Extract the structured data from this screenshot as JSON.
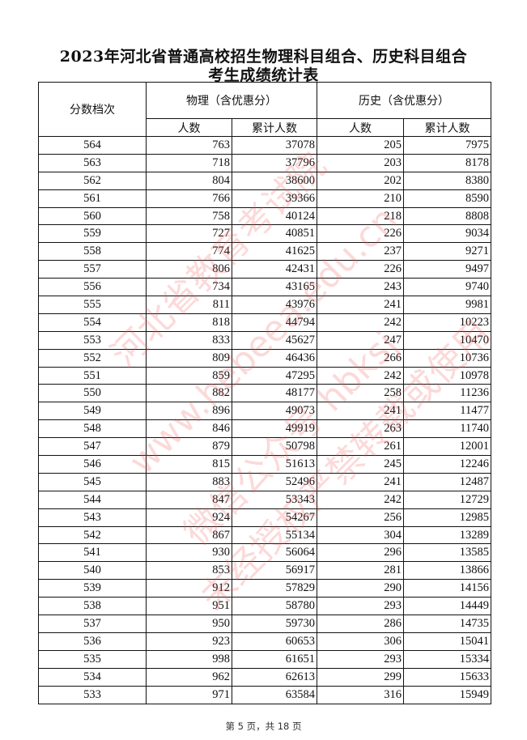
{
  "title_line1": "2023年河北省普通高校招生物理科目组合、历史科目组合",
  "title_line2": "考生成绩统计表",
  "headers": {
    "score": "分数档次",
    "physics": "物理（含优惠分）",
    "history": "历史（含优惠分）",
    "count": "人数",
    "cumulative": "累计人数"
  },
  "rows": [
    [
      "564",
      "763",
      "37078",
      "205",
      "7975"
    ],
    [
      "563",
      "718",
      "37796",
      "203",
      "8178"
    ],
    [
      "562",
      "804",
      "38600",
      "202",
      "8380"
    ],
    [
      "561",
      "766",
      "39366",
      "210",
      "8590"
    ],
    [
      "560",
      "758",
      "40124",
      "218",
      "8808"
    ],
    [
      "559",
      "727",
      "40851",
      "226",
      "9034"
    ],
    [
      "558",
      "774",
      "41625",
      "237",
      "9271"
    ],
    [
      "557",
      "806",
      "42431",
      "226",
      "9497"
    ],
    [
      "556",
      "734",
      "43165",
      "243",
      "9740"
    ],
    [
      "555",
      "811",
      "43976",
      "241",
      "9981"
    ],
    [
      "554",
      "818",
      "44794",
      "242",
      "10223"
    ],
    [
      "553",
      "833",
      "45627",
      "247",
      "10470"
    ],
    [
      "552",
      "809",
      "46436",
      "266",
      "10736"
    ],
    [
      "551",
      "859",
      "47295",
      "242",
      "10978"
    ],
    [
      "550",
      "882",
      "48177",
      "258",
      "11236"
    ],
    [
      "549",
      "896",
      "49073",
      "241",
      "11477"
    ],
    [
      "548",
      "846",
      "49919",
      "263",
      "11740"
    ],
    [
      "547",
      "879",
      "50798",
      "261",
      "12001"
    ],
    [
      "546",
      "815",
      "51613",
      "245",
      "12246"
    ],
    [
      "545",
      "883",
      "52496",
      "241",
      "12487"
    ],
    [
      "544",
      "847",
      "53343",
      "242",
      "12729"
    ],
    [
      "543",
      "924",
      "54267",
      "256",
      "12985"
    ],
    [
      "542",
      "867",
      "55134",
      "304",
      "13289"
    ],
    [
      "541",
      "930",
      "56064",
      "296",
      "13585"
    ],
    [
      "540",
      "853",
      "56917",
      "281",
      "13866"
    ],
    [
      "539",
      "912",
      "57829",
      "290",
      "14156"
    ],
    [
      "538",
      "951",
      "58780",
      "293",
      "14449"
    ],
    [
      "537",
      "950",
      "59730",
      "286",
      "14735"
    ],
    [
      "536",
      "923",
      "60653",
      "306",
      "15041"
    ],
    [
      "535",
      "998",
      "61651",
      "293",
      "15334"
    ],
    [
      "534",
      "962",
      "62613",
      "299",
      "15633"
    ],
    [
      "533",
      "971",
      "63584",
      "316",
      "15949"
    ]
  ],
  "footer": "第 5 页，共 18 页",
  "watermark": [
    "河北省教育考试院",
    "www.hebeea.edu.cn",
    "微信公众号 hbksj",
    "未经授权严禁转载或使用"
  ],
  "watermark_color": "#f05050"
}
